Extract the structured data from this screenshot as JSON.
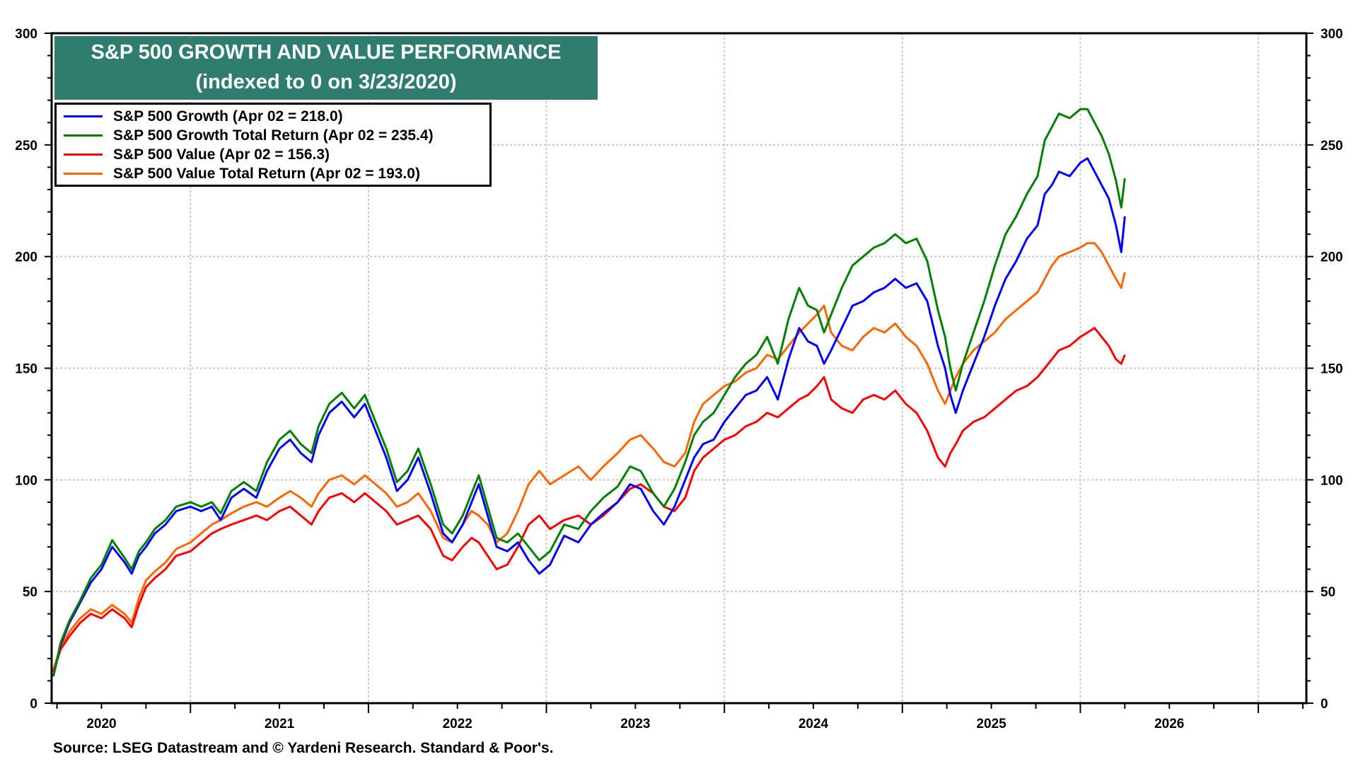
{
  "chart_data": {
    "type": "line",
    "title": "S&P 500 GROWTH AND VALUE PERFORMANCE",
    "subtitle": "(indexed to 0 on 3/23/2020)",
    "xlabel": "",
    "ylabel": "",
    "x_unit": "year (decimal)",
    "xlim": [
      2020.22,
      2027.27
    ],
    "ylim": [
      0,
      300
    ],
    "y_ticks": [
      0,
      50,
      100,
      150,
      200,
      250,
      300
    ],
    "y_minor_step": 10,
    "x_tick_labels": [
      "2020",
      "2021",
      "2022",
      "2023",
      "2024",
      "2025",
      "2026"
    ],
    "x_year_starts": [
      2021,
      2022,
      2023,
      2024,
      2025,
      2026,
      2027
    ],
    "grid": true,
    "legend_position": "top-left",
    "source": "Source: LSEG Datastream and © Yardeni Research. Standard & Poor's.",
    "series": [
      {
        "name": "S&P 500 Growth",
        "legend_label": "S&P 500 Growth (Apr 02 = 218.0)",
        "color": "#0000ff",
        "last_value": 218.0,
        "x": [
          2020.23,
          2020.27,
          2020.32,
          2020.38,
          2020.44,
          2020.5,
          2020.56,
          2020.63,
          2020.67,
          2020.71,
          2020.75,
          2020.8,
          2020.86,
          2020.92,
          2021.0,
          2021.06,
          2021.12,
          2021.17,
          2021.23,
          2021.3,
          2021.37,
          2021.43,
          2021.5,
          2021.56,
          2021.62,
          2021.68,
          2021.72,
          2021.78,
          2021.85,
          2021.92,
          2021.98,
          2022.04,
          2022.1,
          2022.16,
          2022.22,
          2022.28,
          2022.35,
          2022.42,
          2022.47,
          2022.53,
          2022.58,
          2022.62,
          2022.67,
          2022.72,
          2022.78,
          2022.84,
          2022.9,
          2022.96,
          2023.02,
          2023.1,
          2023.18,
          2023.25,
          2023.32,
          2023.4,
          2023.47,
          2023.53,
          2023.6,
          2023.66,
          2023.72,
          2023.78,
          2023.83,
          2023.88,
          2023.94,
          2024.0,
          2024.06,
          2024.12,
          2024.18,
          2024.24,
          2024.3,
          2024.36,
          2024.42,
          2024.47,
          2024.52,
          2024.56,
          2024.6,
          2024.66,
          2024.72,
          2024.78,
          2024.84,
          2024.9,
          2024.96,
          2025.02,
          2025.08,
          2025.14,
          2025.2,
          2025.24,
          2025.27,
          2025.3,
          2025.34,
          2025.4,
          2025.46,
          2025.52,
          2025.58,
          2025.64,
          2025.7,
          2025.76,
          2025.8,
          2025.84,
          2025.88,
          2025.94,
          2026.0,
          2026.04,
          2026.08,
          2026.12,
          2026.16,
          2026.2,
          2026.23,
          2026.25
        ],
        "y": [
          12,
          26,
          36,
          45,
          54,
          60,
          70,
          63,
          58,
          66,
          70,
          76,
          80,
          86,
          88,
          86,
          88,
          82,
          92,
          96,
          92,
          104,
          114,
          118,
          112,
          108,
          120,
          130,
          135,
          128,
          134,
          122,
          110,
          95,
          100,
          110,
          94,
          76,
          72,
          80,
          90,
          98,
          84,
          70,
          68,
          72,
          64,
          58,
          62,
          75,
          72,
          80,
          85,
          90,
          98,
          96,
          86,
          80,
          88,
          100,
          110,
          116,
          118,
          126,
          132,
          138,
          140,
          146,
          136,
          154,
          168,
          162,
          160,
          152,
          158,
          168,
          178,
          180,
          184,
          186,
          190,
          186,
          188,
          180,
          160,
          150,
          138,
          130,
          140,
          152,
          164,
          178,
          190,
          198,
          208,
          214,
          228,
          232,
          238,
          236,
          242,
          244,
          238,
          232,
          226,
          214,
          202,
          218
        ]
      },
      {
        "name": "S&P 500 Growth Total Return",
        "legend_label": "S&P 500 Growth Total Return (Apr 02 = 235.4)",
        "color": "#008000",
        "last_value": 235.4,
        "x": [
          2020.23,
          2020.27,
          2020.32,
          2020.38,
          2020.44,
          2020.5,
          2020.56,
          2020.63,
          2020.67,
          2020.71,
          2020.75,
          2020.8,
          2020.86,
          2020.92,
          2021.0,
          2021.06,
          2021.12,
          2021.17,
          2021.23,
          2021.3,
          2021.37,
          2021.43,
          2021.5,
          2021.56,
          2021.62,
          2021.68,
          2021.72,
          2021.78,
          2021.85,
          2021.92,
          2021.98,
          2022.04,
          2022.1,
          2022.16,
          2022.22,
          2022.28,
          2022.35,
          2022.42,
          2022.47,
          2022.53,
          2022.58,
          2022.62,
          2022.67,
          2022.72,
          2022.78,
          2022.84,
          2022.9,
          2022.96,
          2023.02,
          2023.1,
          2023.18,
          2023.25,
          2023.32,
          2023.4,
          2023.47,
          2023.53,
          2023.6,
          2023.66,
          2023.72,
          2023.78,
          2023.83,
          2023.88,
          2023.94,
          2024.0,
          2024.06,
          2024.12,
          2024.18,
          2024.24,
          2024.3,
          2024.36,
          2024.42,
          2024.47,
          2024.52,
          2024.56,
          2024.6,
          2024.66,
          2024.72,
          2024.78,
          2024.84,
          2024.9,
          2024.96,
          2025.02,
          2025.08,
          2025.14,
          2025.2,
          2025.24,
          2025.27,
          2025.3,
          2025.34,
          2025.4,
          2025.46,
          2025.52,
          2025.58,
          2025.64,
          2025.7,
          2025.76,
          2025.8,
          2025.84,
          2025.88,
          2025.94,
          2026.0,
          2026.04,
          2026.08,
          2026.12,
          2026.16,
          2026.2,
          2026.23,
          2026.25
        ],
        "y": [
          12,
          27,
          37,
          46,
          56,
          62,
          73,
          65,
          60,
          68,
          72,
          78,
          82,
          88,
          90,
          88,
          90,
          85,
          95,
          99,
          95,
          108,
          118,
          122,
          116,
          112,
          124,
          134,
          139,
          132,
          138,
          126,
          114,
          99,
          104,
          114,
          98,
          80,
          76,
          84,
          94,
          102,
          88,
          74,
          72,
          76,
          70,
          64,
          68,
          80,
          78,
          86,
          92,
          97,
          106,
          104,
          94,
          88,
          96,
          108,
          120,
          126,
          130,
          138,
          146,
          152,
          156,
          164,
          152,
          172,
          186,
          178,
          176,
          166,
          174,
          186,
          196,
          200,
          204,
          206,
          210,
          206,
          208,
          198,
          176,
          164,
          150,
          140,
          152,
          166,
          180,
          196,
          210,
          218,
          228,
          236,
          252,
          258,
          264,
          262,
          266,
          266,
          260,
          254,
          246,
          234,
          222,
          235
        ]
      },
      {
        "name": "S&P 500 Value",
        "legend_label": "S&P 500 Value (Apr 02 = 156.3)",
        "color": "#ff0000",
        "last_value": 156.3,
        "x": [
          2020.23,
          2020.27,
          2020.32,
          2020.38,
          2020.44,
          2020.5,
          2020.56,
          2020.63,
          2020.67,
          2020.71,
          2020.75,
          2020.8,
          2020.86,
          2020.92,
          2021.0,
          2021.06,
          2021.12,
          2021.17,
          2021.23,
          2021.3,
          2021.37,
          2021.43,
          2021.5,
          2021.56,
          2021.62,
          2021.68,
          2021.72,
          2021.78,
          2021.85,
          2021.92,
          2021.98,
          2022.04,
          2022.1,
          2022.16,
          2022.22,
          2022.28,
          2022.35,
          2022.42,
          2022.47,
          2022.53,
          2022.58,
          2022.62,
          2022.67,
          2022.72,
          2022.78,
          2022.84,
          2022.9,
          2022.96,
          2023.02,
          2023.1,
          2023.18,
          2023.25,
          2023.32,
          2023.4,
          2023.47,
          2023.53,
          2023.6,
          2023.66,
          2023.72,
          2023.78,
          2023.83,
          2023.88,
          2023.94,
          2024.0,
          2024.06,
          2024.12,
          2024.18,
          2024.24,
          2024.3,
          2024.36,
          2024.42,
          2024.47,
          2024.52,
          2024.56,
          2024.6,
          2024.66,
          2024.72,
          2024.78,
          2024.84,
          2024.9,
          2024.96,
          2025.02,
          2025.08,
          2025.14,
          2025.2,
          2025.24,
          2025.27,
          2025.3,
          2025.34,
          2025.4,
          2025.46,
          2025.52,
          2025.58,
          2025.64,
          2025.7,
          2025.76,
          2025.8,
          2025.84,
          2025.88,
          2025.94,
          2026.0,
          2026.04,
          2026.08,
          2026.12,
          2026.16,
          2026.2,
          2026.23,
          2026.25
        ],
        "y": [
          14,
          24,
          30,
          36,
          40,
          38,
          42,
          38,
          34,
          44,
          52,
          56,
          60,
          66,
          68,
          72,
          76,
          78,
          80,
          82,
          84,
          82,
          86,
          88,
          84,
          80,
          86,
          92,
          94,
          90,
          94,
          90,
          86,
          80,
          82,
          84,
          78,
          66,
          64,
          70,
          74,
          72,
          66,
          60,
          62,
          70,
          80,
          84,
          78,
          82,
          84,
          80,
          84,
          90,
          96,
          98,
          94,
          88,
          86,
          92,
          104,
          110,
          114,
          118,
          120,
          124,
          126,
          130,
          128,
          132,
          136,
          138,
          142,
          146,
          136,
          132,
          130,
          136,
          138,
          136,
          140,
          134,
          130,
          122,
          110,
          106,
          112,
          116,
          122,
          126,
          128,
          132,
          136,
          140,
          142,
          146,
          150,
          154,
          158,
          160,
          164,
          166,
          168,
          164,
          160,
          154,
          152,
          156
        ]
      },
      {
        "name": "S&P 500 Value Total Return",
        "legend_label": "S&P 500 Value Total Return (Apr 02 = 193.0)",
        "color": "#ff6600",
        "last_value": 193.0,
        "x": [
          2020.23,
          2020.27,
          2020.32,
          2020.38,
          2020.44,
          2020.5,
          2020.56,
          2020.63,
          2020.67,
          2020.71,
          2020.75,
          2020.8,
          2020.86,
          2020.92,
          2021.0,
          2021.06,
          2021.12,
          2021.17,
          2021.23,
          2021.3,
          2021.37,
          2021.43,
          2021.5,
          2021.56,
          2021.62,
          2021.68,
          2021.72,
          2021.78,
          2021.85,
          2021.92,
          2021.98,
          2022.04,
          2022.1,
          2022.16,
          2022.22,
          2022.28,
          2022.35,
          2022.42,
          2022.47,
          2022.53,
          2022.58,
          2022.62,
          2022.67,
          2022.72,
          2022.78,
          2022.84,
          2022.9,
          2022.96,
          2023.02,
          2023.1,
          2023.18,
          2023.25,
          2023.32,
          2023.4,
          2023.47,
          2023.53,
          2023.6,
          2023.66,
          2023.72,
          2023.78,
          2023.83,
          2023.88,
          2023.94,
          2024.0,
          2024.06,
          2024.12,
          2024.18,
          2024.24,
          2024.3,
          2024.36,
          2024.42,
          2024.47,
          2024.52,
          2024.56,
          2024.6,
          2024.66,
          2024.72,
          2024.78,
          2024.84,
          2024.9,
          2024.96,
          2025.02,
          2025.08,
          2025.14,
          2025.2,
          2025.24,
          2025.27,
          2025.3,
          2025.34,
          2025.4,
          2025.46,
          2025.52,
          2025.58,
          2025.64,
          2025.7,
          2025.76,
          2025.8,
          2025.84,
          2025.88,
          2025.94,
          2026.0,
          2026.04,
          2026.08,
          2026.12,
          2026.16,
          2026.2,
          2026.23,
          2026.25
        ],
        "y": [
          15,
          25,
          32,
          38,
          42,
          40,
          44,
          40,
          36,
          47,
          55,
          59,
          63,
          69,
          72,
          76,
          80,
          82,
          85,
          88,
          90,
          88,
          92,
          95,
          92,
          88,
          94,
          100,
          102,
          98,
          102,
          98,
          94,
          88,
          90,
          94,
          86,
          74,
          72,
          80,
          86,
          84,
          80,
          72,
          76,
          86,
          98,
          104,
          98,
          102,
          106,
          100,
          106,
          112,
          118,
          120,
          114,
          108,
          106,
          112,
          126,
          134,
          138,
          142,
          144,
          148,
          150,
          156,
          154,
          160,
          166,
          170,
          174,
          178,
          166,
          160,
          158,
          164,
          168,
          166,
          170,
          164,
          160,
          152,
          140,
          134,
          140,
          146,
          152,
          158,
          162,
          166,
          172,
          176,
          180,
          184,
          190,
          196,
          200,
          202,
          204,
          206,
          206,
          202,
          196,
          190,
          186,
          193
        ]
      }
    ]
  }
}
